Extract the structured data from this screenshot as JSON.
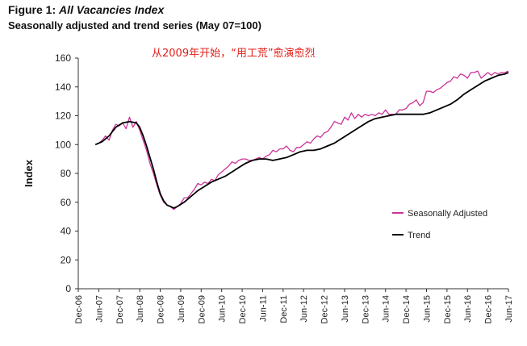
{
  "figure": {
    "title_prefix": "Figure 1: ",
    "title_italic": "All Vacancies Index",
    "subtitle": "Seasonally adjusted and trend series (May 07=100)"
  },
  "annotation": "从2009年开始，“用工荒”愈演愈烈",
  "colors": {
    "seasonal": "#cc3399",
    "trend": "#000000",
    "annotation": "#e0211b",
    "axis": "#333333"
  },
  "chart_data": {
    "type": "line",
    "title": "All Vacancies Index",
    "subtitle": "Seasonally adjusted and trend series (May 07=100)",
    "xlabel": "",
    "ylabel": "Index",
    "ylim": [
      0,
      160
    ],
    "yticks": [
      0,
      20,
      40,
      60,
      80,
      100,
      120,
      140,
      160
    ],
    "xlim": [
      "2006-12",
      "2017-06"
    ],
    "xtick_labels": [
      "Dec-06",
      "Jun-07",
      "Dec-07",
      "Jun-08",
      "Dec-08",
      "Jun-09",
      "Dec-09",
      "Jun-10",
      "Dec-10",
      "Jun-11",
      "Dec-11",
      "Jun-12",
      "Dec-12",
      "Jun-13",
      "Dec-13",
      "Jun-14",
      "Dec-14",
      "Jun-15",
      "Dec-15",
      "Jun-16",
      "Dec-16",
      "Jun-17"
    ],
    "grid": false,
    "legend_position": "right",
    "series": [
      {
        "name": "Seasonally Adjusted",
        "color": "#cc3399",
        "x": [
          "2007-05",
          "2007-06",
          "2007-07",
          "2007-08",
          "2007-09",
          "2007-10",
          "2007-11",
          "2007-12",
          "2008-01",
          "2008-02",
          "2008-03",
          "2008-04",
          "2008-05",
          "2008-06",
          "2008-07",
          "2008-08",
          "2008-09",
          "2008-10",
          "2008-11",
          "2008-12",
          "2009-01",
          "2009-02",
          "2009-03",
          "2009-04",
          "2009-05",
          "2009-06",
          "2009-07",
          "2009-08",
          "2009-09",
          "2009-10",
          "2009-11",
          "2009-12",
          "2010-01",
          "2010-02",
          "2010-03",
          "2010-04",
          "2010-05",
          "2010-06",
          "2010-07",
          "2010-08",
          "2010-09",
          "2010-10",
          "2010-11",
          "2010-12",
          "2011-01",
          "2011-02",
          "2011-03",
          "2011-04",
          "2011-05",
          "2011-06",
          "2011-07",
          "2011-08",
          "2011-09",
          "2011-10",
          "2011-11",
          "2011-12",
          "2012-01",
          "2012-02",
          "2012-03",
          "2012-04",
          "2012-05",
          "2012-06",
          "2012-07",
          "2012-08",
          "2012-09",
          "2012-10",
          "2012-11",
          "2012-12",
          "2013-01",
          "2013-02",
          "2013-03",
          "2013-04",
          "2013-05",
          "2013-06",
          "2013-07",
          "2013-08",
          "2013-09",
          "2013-10",
          "2013-11",
          "2013-12",
          "2014-01",
          "2014-02",
          "2014-03",
          "2014-04",
          "2014-05",
          "2014-06",
          "2014-07",
          "2014-08",
          "2014-09",
          "2014-10",
          "2014-11",
          "2014-12",
          "2015-01",
          "2015-02",
          "2015-03",
          "2015-04",
          "2015-05",
          "2015-06",
          "2015-07",
          "2015-08",
          "2015-09",
          "2015-10",
          "2015-11",
          "2015-12",
          "2016-01",
          "2016-02",
          "2016-03",
          "2016-04",
          "2016-05",
          "2016-06",
          "2016-07",
          "2016-08",
          "2016-09",
          "2016-10",
          "2016-11",
          "2016-12",
          "2017-01",
          "2017-02",
          "2017-03",
          "2017-04",
          "2017-05",
          "2017-06"
        ],
        "values": [
          100,
          101,
          103,
          106,
          103,
          110,
          114,
          113,
          115,
          111,
          119,
          112,
          116,
          110,
          103,
          96,
          87,
          80,
          72,
          65,
          60,
          58,
          57,
          55,
          57,
          59,
          63,
          63,
          66,
          69,
          73,
          72,
          74,
          73,
          76,
          75,
          79,
          81,
          83,
          85,
          88,
          87,
          89,
          90,
          90,
          89,
          89,
          90,
          91,
          90,
          92,
          93,
          96,
          95,
          97,
          97,
          99,
          96,
          95,
          98,
          98,
          100,
          102,
          101,
          104,
          106,
          105,
          108,
          109,
          112,
          116,
          115,
          114,
          119,
          117,
          122,
          118,
          121,
          119,
          121,
          120,
          121,
          120,
          122,
          121,
          124,
          121,
          121,
          121,
          124,
          124,
          125,
          128,
          129,
          131,
          127,
          129,
          137,
          137,
          136,
          138,
          139,
          141,
          143,
          144,
          147,
          146,
          149,
          148,
          146,
          150,
          150,
          151,
          146,
          148,
          150,
          148,
          150,
          149,
          150,
          150,
          151
        ]
      },
      {
        "name": "Trend",
        "color": "#000000",
        "x": [
          "2007-05",
          "2007-07",
          "2007-09",
          "2007-11",
          "2008-01",
          "2008-03",
          "2008-05",
          "2008-06",
          "2008-07",
          "2008-08",
          "2008-09",
          "2008-10",
          "2008-11",
          "2008-12",
          "2009-01",
          "2009-02",
          "2009-03",
          "2009-04",
          "2009-05",
          "2009-07",
          "2009-09",
          "2009-11",
          "2010-01",
          "2010-03",
          "2010-05",
          "2010-07",
          "2010-09",
          "2010-11",
          "2011-01",
          "2011-03",
          "2011-05",
          "2011-07",
          "2011-09",
          "2011-11",
          "2012-01",
          "2012-03",
          "2012-05",
          "2012-07",
          "2012-09",
          "2012-11",
          "2013-01",
          "2013-03",
          "2013-05",
          "2013-07",
          "2013-09",
          "2013-11",
          "2014-01",
          "2014-03",
          "2014-05",
          "2014-07",
          "2014-09",
          "2014-11",
          "2015-01",
          "2015-03",
          "2015-05",
          "2015-07",
          "2015-09",
          "2015-11",
          "2016-01",
          "2016-03",
          "2016-05",
          "2016-07",
          "2016-09",
          "2016-11",
          "2017-01",
          "2017-03",
          "2017-05",
          "2017-06"
        ],
        "values": [
          100,
          102,
          106,
          112,
          115,
          116,
          115,
          112,
          106,
          99,
          91,
          83,
          74,
          66,
          61,
          58,
          57,
          56,
          57,
          60,
          64,
          68,
          71,
          74,
          76,
          78,
          81,
          84,
          87,
          89,
          90,
          90,
          89,
          90,
          91,
          93,
          95,
          96,
          96,
          97,
          99,
          101,
          104,
          107,
          110,
          113,
          116,
          118,
          119,
          120,
          121,
          121,
          121,
          121,
          121,
          122,
          124,
          126,
          128,
          131,
          135,
          138,
          141,
          144,
          146,
          148,
          149,
          150
        ]
      }
    ]
  }
}
